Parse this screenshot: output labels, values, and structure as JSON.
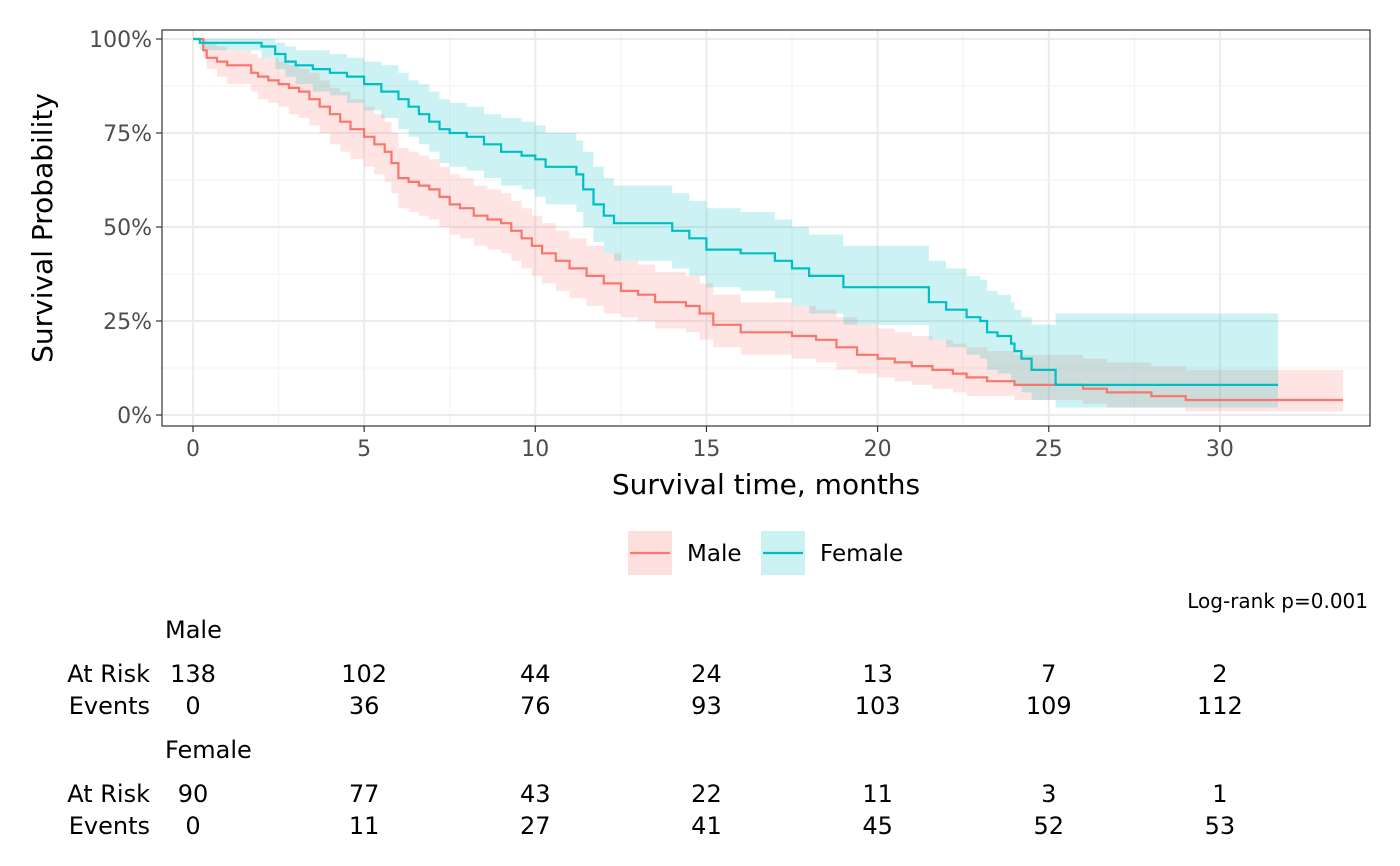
{
  "chart_data": {
    "type": "line",
    "subtype": "kaplan-meier",
    "xlabel": "Survival time, months",
    "ylabel": "Survival Probability",
    "xlim": [
      0,
      34
    ],
    "ylim": [
      0,
      1
    ],
    "x_ticks": [
      0,
      5,
      10,
      15,
      20,
      25,
      30
    ],
    "x_tick_labels": [
      "0",
      "5",
      "10",
      "15",
      "20",
      "25",
      "30"
    ],
    "y_ticks": [
      0,
      0.25,
      0.5,
      0.75,
      1.0
    ],
    "y_tick_labels": [
      "0%",
      "25%",
      "50%",
      "75%",
      "100%"
    ],
    "grid": true,
    "legend_position": "bottom",
    "annotation": "Log-rank p=0.001",
    "series": [
      {
        "name": "Male",
        "color": "#F8766D",
        "fill": "#FDE0DE",
        "x": [
          0,
          0.3,
          0.4,
          0.7,
          1.0,
          1.7,
          1.9,
          2.2,
          2.5,
          2.8,
          3.1,
          3.4,
          3.7,
          4.0,
          4.3,
          4.6,
          5.0,
          5.3,
          5.6,
          5.8,
          6.0,
          6.3,
          6.6,
          6.9,
          7.2,
          7.5,
          7.8,
          8.2,
          8.6,
          9.0,
          9.3,
          9.6,
          9.9,
          10.2,
          10.6,
          11.0,
          11.5,
          12.0,
          12.5,
          13.0,
          13.5,
          14.0,
          14.4,
          14.8,
          15.2,
          16.0,
          16.8,
          17.5,
          18.2,
          18.8,
          19.4,
          20.0,
          20.5,
          21.0,
          21.6,
          22.2,
          22.6,
          23.2,
          24.0,
          25.0,
          26.0,
          26.7,
          28.0,
          29.0,
          30.0,
          33.6
        ],
        "y": [
          1.0,
          0.97,
          0.95,
          0.94,
          0.93,
          0.91,
          0.9,
          0.89,
          0.88,
          0.87,
          0.86,
          0.84,
          0.82,
          0.8,
          0.78,
          0.76,
          0.74,
          0.72,
          0.7,
          0.67,
          0.63,
          0.62,
          0.61,
          0.6,
          0.58,
          0.56,
          0.55,
          0.53,
          0.52,
          0.51,
          0.49,
          0.47,
          0.45,
          0.43,
          0.41,
          0.39,
          0.37,
          0.35,
          0.33,
          0.32,
          0.3,
          0.3,
          0.29,
          0.27,
          0.24,
          0.22,
          0.22,
          0.21,
          0.2,
          0.18,
          0.16,
          0.15,
          0.14,
          0.13,
          0.12,
          0.11,
          0.1,
          0.09,
          0.08,
          0.08,
          0.07,
          0.06,
          0.05,
          0.04,
          0.04,
          0.04
        ],
        "lower": [
          1.0,
          0.95,
          0.92,
          0.9,
          0.88,
          0.86,
          0.84,
          0.83,
          0.82,
          0.8,
          0.79,
          0.77,
          0.75,
          0.72,
          0.7,
          0.68,
          0.66,
          0.64,
          0.62,
          0.59,
          0.55,
          0.54,
          0.53,
          0.52,
          0.5,
          0.48,
          0.47,
          0.45,
          0.44,
          0.43,
          0.41,
          0.39,
          0.37,
          0.35,
          0.33,
          0.31,
          0.29,
          0.27,
          0.26,
          0.25,
          0.23,
          0.23,
          0.22,
          0.2,
          0.18,
          0.16,
          0.16,
          0.15,
          0.14,
          0.12,
          0.11,
          0.1,
          0.09,
          0.08,
          0.07,
          0.06,
          0.05,
          0.05,
          0.04,
          0.04,
          0.03,
          0.02,
          0.02,
          0.01,
          0.01,
          0.01
        ],
        "upper": [
          1.0,
          1.0,
          0.99,
          0.98,
          0.97,
          0.96,
          0.95,
          0.95,
          0.94,
          0.93,
          0.92,
          0.91,
          0.89,
          0.87,
          0.86,
          0.84,
          0.82,
          0.8,
          0.78,
          0.75,
          0.71,
          0.7,
          0.69,
          0.68,
          0.66,
          0.64,
          0.63,
          0.61,
          0.6,
          0.59,
          0.57,
          0.55,
          0.53,
          0.51,
          0.49,
          0.47,
          0.45,
          0.43,
          0.41,
          0.4,
          0.38,
          0.38,
          0.37,
          0.35,
          0.32,
          0.3,
          0.3,
          0.29,
          0.28,
          0.26,
          0.24,
          0.23,
          0.22,
          0.21,
          0.2,
          0.19,
          0.18,
          0.17,
          0.16,
          0.16,
          0.15,
          0.14,
          0.13,
          0.12,
          0.12,
          0.12
        ]
      },
      {
        "name": "Female",
        "color": "#00BFC4",
        "fill": "#CCF1F3",
        "x": [
          0,
          0.2,
          2.0,
          2.4,
          2.7,
          3.0,
          3.5,
          4.0,
          4.5,
          5.0,
          5.5,
          6.0,
          6.3,
          6.6,
          6.9,
          7.2,
          7.5,
          8.0,
          8.5,
          9.0,
          9.6,
          10.0,
          10.3,
          11.2,
          11.4,
          11.7,
          12.0,
          12.3,
          12.7,
          13.1,
          13.5,
          14.0,
          14.5,
          15.0,
          16.0,
          17.0,
          17.5,
          18.0,
          19.0,
          20.0,
          21.0,
          21.5,
          22.0,
          22.6,
          23.0,
          23.2,
          23.5,
          23.9,
          24.0,
          24.2,
          24.5,
          25.0,
          25.2,
          26.0,
          27.0,
          29.0,
          30.0,
          31.7
        ],
        "y": [
          1.0,
          0.99,
          0.98,
          0.96,
          0.94,
          0.93,
          0.92,
          0.91,
          0.9,
          0.88,
          0.86,
          0.84,
          0.82,
          0.8,
          0.78,
          0.76,
          0.75,
          0.74,
          0.72,
          0.7,
          0.69,
          0.68,
          0.66,
          0.64,
          0.6,
          0.56,
          0.53,
          0.51,
          0.51,
          0.51,
          0.51,
          0.49,
          0.47,
          0.44,
          0.43,
          0.41,
          0.39,
          0.37,
          0.34,
          0.34,
          0.34,
          0.3,
          0.28,
          0.26,
          0.25,
          0.22,
          0.21,
          0.19,
          0.17,
          0.15,
          0.12,
          0.12,
          0.08,
          0.08,
          0.08,
          0.08,
          0.08,
          0.08
        ],
        "lower": [
          1.0,
          0.97,
          0.95,
          0.92,
          0.9,
          0.88,
          0.86,
          0.85,
          0.83,
          0.81,
          0.79,
          0.76,
          0.74,
          0.72,
          0.7,
          0.67,
          0.66,
          0.65,
          0.63,
          0.61,
          0.6,
          0.58,
          0.56,
          0.54,
          0.5,
          0.46,
          0.43,
          0.41,
          0.41,
          0.41,
          0.41,
          0.39,
          0.37,
          0.34,
          0.33,
          0.31,
          0.29,
          0.27,
          0.24,
          0.24,
          0.24,
          0.2,
          0.18,
          0.16,
          0.15,
          0.12,
          0.11,
          0.09,
          0.08,
          0.06,
          0.04,
          0.04,
          0.02,
          0.02,
          0.02,
          0.02,
          0.02,
          0.02
        ],
        "upper": [
          1.0,
          1.0,
          1.0,
          0.99,
          0.98,
          0.97,
          0.97,
          0.96,
          0.95,
          0.94,
          0.93,
          0.91,
          0.89,
          0.88,
          0.86,
          0.84,
          0.83,
          0.82,
          0.8,
          0.79,
          0.78,
          0.77,
          0.75,
          0.73,
          0.7,
          0.66,
          0.63,
          0.61,
          0.61,
          0.61,
          0.61,
          0.59,
          0.57,
          0.55,
          0.54,
          0.52,
          0.5,
          0.48,
          0.45,
          0.45,
          0.45,
          0.41,
          0.39,
          0.37,
          0.36,
          0.33,
          0.32,
          0.3,
          0.28,
          0.26,
          0.24,
          0.24,
          0.27,
          0.27,
          0.27,
          0.27,
          0.27,
          0.27
        ]
      }
    ],
    "risk_table": {
      "times": [
        0,
        5,
        10,
        15,
        20,
        25,
        30
      ],
      "row_labels": {
        "at_risk": "At Risk",
        "events": "Events"
      },
      "groups": [
        {
          "name": "Male",
          "at_risk": [
            "138",
            "102",
            "44",
            "24",
            "13",
            "7",
            "2"
          ],
          "events": [
            "0",
            "36",
            "76",
            "93",
            "103",
            "109",
            "112"
          ]
        },
        {
          "name": "Female",
          "at_risk": [
            "90",
            "77",
            "43",
            "22",
            "11",
            "3",
            "1"
          ],
          "events": [
            "0",
            "11",
            "27",
            "41",
            "45",
            "52",
            "53"
          ]
        }
      ]
    }
  }
}
